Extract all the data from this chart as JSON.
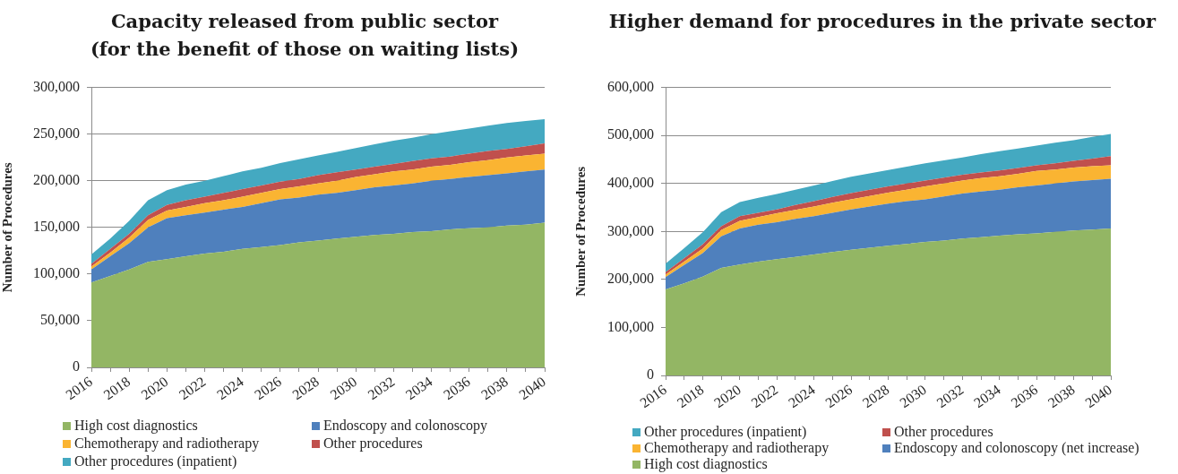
{
  "chart_data": [
    {
      "type": "area",
      "title": "Capacity released from public sector\n(for the benefit of those on waiting lists)",
      "ylabel": "Number of Procedures",
      "stacked": true,
      "grid": "y",
      "legend": "bottom",
      "categories": [
        "2016",
        null,
        "2018",
        null,
        "2020",
        null,
        "2022",
        null,
        "2024",
        null,
        "2026",
        null,
        "2028",
        null,
        "2030",
        null,
        "2032",
        null,
        "2034",
        null,
        "2036",
        null,
        "2038",
        null,
        "2040"
      ],
      "ylim": [
        0,
        300000
      ],
      "yticks": [
        0,
        {
          "value": 50000,
          "label": "50,000"
        },
        {
          "value": 100000,
          "label": "100,000"
        },
        {
          "value": 150000,
          "label": "150,000"
        },
        {
          "value": 200000,
          "label": "200,000"
        },
        {
          "value": 250000,
          "label": "250,000"
        },
        {
          "value": 300000,
          "label": "300,000"
        }
      ],
      "series": [
        {
          "name": "High cost diagnostics",
          "color": "#93b664",
          "values": [
            91000,
            98000,
            105000,
            113000,
            116000,
            119000,
            122000,
            124000,
            127000,
            129000,
            131000,
            134000,
            136000,
            138000,
            140000,
            142000,
            143000,
            145000,
            146000,
            148000,
            149000,
            150000,
            152000,
            153000,
            155000
          ]
        },
        {
          "name": "Endoscopy and colonoscopy",
          "color": "#4f80bd",
          "values": [
            14000,
            21000,
            28000,
            37000,
            44000,
            44000,
            44000,
            45000,
            45000,
            47000,
            49000,
            48000,
            49000,
            49000,
            50000,
            51000,
            52000,
            52000,
            54000,
            54000,
            55000,
            56000,
            56000,
            57000,
            57000
          ]
        },
        {
          "name": "Chemotherapy and radiotherapy",
          "color": "#fab432",
          "values": [
            3000,
            4000,
            6000,
            8000,
            8000,
            9000,
            10000,
            10000,
            11000,
            11000,
            11000,
            12000,
            12000,
            13000,
            14000,
            14000,
            15000,
            15000,
            15000,
            15000,
            16000,
            16000,
            17000,
            17000,
            17000
          ]
        },
        {
          "name": "Other procedures",
          "color": "#c0504d",
          "values": [
            3000,
            4000,
            4000,
            5000,
            6000,
            7000,
            7000,
            8000,
            8000,
            8000,
            8000,
            8000,
            9000,
            9000,
            8000,
            8000,
            8000,
            9000,
            9000,
            9000,
            9000,
            10000,
            9000,
            10000,
            11000
          ]
        },
        {
          "name": "Other procedures (inpatient)",
          "color": "#44a9c1",
          "values": [
            10000,
            11000,
            14000,
            16000,
            16000,
            17000,
            17000,
            18000,
            19000,
            19000,
            20000,
            21000,
            21000,
            22000,
            23000,
            24000,
            25000,
            25000,
            26000,
            27000,
            27000,
            27000,
            28000,
            27000,
            26000
          ]
        }
      ]
    },
    {
      "type": "area",
      "title": "Higher demand for procedures in the private sector",
      "ylabel": "Number of Procedures",
      "stacked": true,
      "grid": "y",
      "legend": "bottom",
      "categories": [
        "2016",
        null,
        "2018",
        null,
        "2020",
        null,
        "2022",
        null,
        "2024",
        null,
        "2026",
        null,
        "2028",
        null,
        "2030",
        null,
        "2032",
        null,
        "2034",
        null,
        "2036",
        null,
        "2038",
        null,
        "2040"
      ],
      "ylim": [
        0,
        600000
      ],
      "yticks": [
        0,
        {
          "value": 100000,
          "label": "100,000"
        },
        {
          "value": 200000,
          "label": "200,000"
        },
        {
          "value": 300000,
          "label": "300,000"
        },
        {
          "value": 400000,
          "label": "400,000"
        },
        {
          "value": 500000,
          "label": "500,000"
        },
        {
          "value": 600000,
          "label": "600,000"
        }
      ],
      "series": [
        {
          "name": "High cost diagnostics",
          "color": "#93b664",
          "values": [
            179000,
            192000,
            206000,
            224000,
            231000,
            237000,
            242000,
            247000,
            252000,
            257000,
            262000,
            266000,
            270000,
            274000,
            278000,
            281000,
            285000,
            288000,
            291000,
            294000,
            296000,
            299000,
            302000,
            304000,
            306000
          ]
        },
        {
          "name": "Endoscopy and colonoscopy (net increase)",
          "color": "#4f80bd",
          "values": [
            26000,
            38000,
            49000,
            66000,
            75000,
            77000,
            77000,
            79000,
            80000,
            82000,
            84000,
            86000,
            88000,
            89000,
            89000,
            92000,
            94000,
            95000,
            96000,
            98000,
            100000,
            101000,
            102000,
            103000,
            104000
          ]
        },
        {
          "name": "Chemotherapy and radiotherapy",
          "color": "#fab432",
          "values": [
            5000,
            7000,
            9000,
            13000,
            16000,
            16000,
            19000,
            19000,
            20000,
            21000,
            21000,
            22000,
            23000,
            24000,
            27000,
            27000,
            27000,
            28000,
            28000,
            28000,
            30000,
            29000,
            29000,
            29000,
            28000
          ]
        },
        {
          "name": "Other procedures",
          "color": "#c0504d",
          "values": [
            5000,
            7000,
            9000,
            8000,
            10000,
            9000,
            8000,
            10000,
            11000,
            12000,
            13000,
            13000,
            13000,
            13000,
            12000,
            12000,
            12000,
            12000,
            12000,
            12000,
            12000,
            13000,
            14000,
            16000,
            19000
          ]
        },
        {
          "name": "Other procedures (inpatient)",
          "color": "#44a9c1",
          "values": [
            18000,
            21000,
            25000,
            29000,
            29000,
            31000,
            32000,
            32000,
            33000,
            33000,
            34000,
            34000,
            34000,
            35000,
            36000,
            36000,
            36000,
            38000,
            40000,
            41000,
            41000,
            43000,
            43000,
            45000,
            46000
          ]
        }
      ]
    }
  ]
}
